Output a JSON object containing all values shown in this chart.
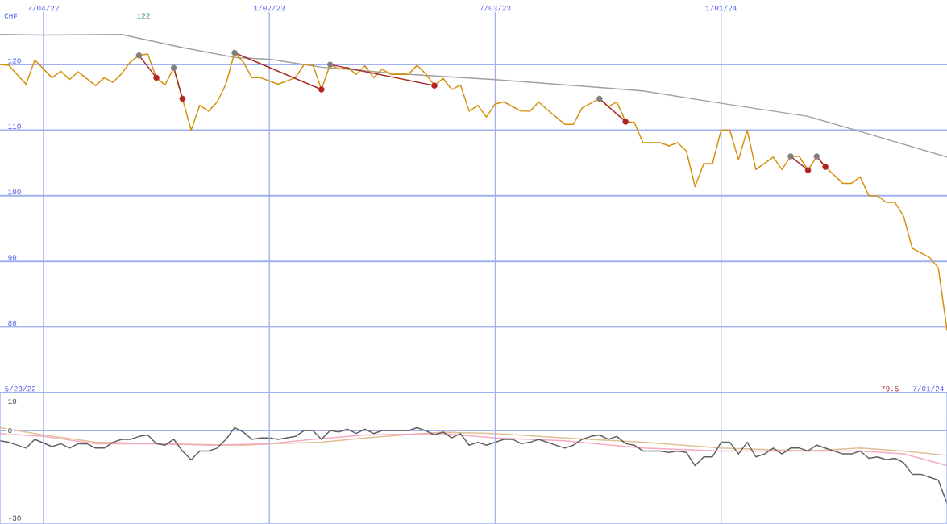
{
  "chart_data": [
    {
      "type": "line",
      "ylabel": "CHF",
      "annotations": [
        "122",
        "5/23/22",
        "79.5",
        "7/01/24"
      ],
      "xlim": [
        "2022-05-30",
        "2024-07-01"
      ],
      "ylim": [
        70,
        128
      ],
      "xticks": [
        {
          "value": "2022-07-04",
          "label": "7/04/22"
        },
        {
          "value": "2023-01-02",
          "label": "1/02/23"
        },
        {
          "value": "2023-07-03",
          "label": "7/03/23"
        },
        {
          "value": "2024-01-01",
          "label": "1/01/24"
        }
      ],
      "yticks": [
        80,
        90,
        100,
        110,
        120
      ],
      "grid": true,
      "tick_labels": "xy",
      "series": [
        {
          "color": "#a0a0a0",
          "x": [
            "2022-05-30",
            "2022-07-04",
            "2022-09-05",
            "2022-10-24",
            "2022-12-05",
            "2023-01-02",
            "2023-02-13",
            "2023-04-17",
            "2023-07-03",
            "2023-08-28",
            "2023-10-30",
            "2024-01-01",
            "2024-03-11",
            "2024-04-22",
            "2024-07-01"
          ],
          "values": [
            124.6,
            124.5,
            124.6,
            122.6,
            121.1,
            120.8,
            119.6,
            118.6,
            117.7,
            116.9,
            116.0,
            114.1,
            112.1,
            109.8,
            105.9
          ]
        },
        {
          "color": "#d4900a",
          "x": [
            "2022-05-30",
            "2022-06-06",
            "2022-06-20",
            "2022-06-27",
            "2022-07-11",
            "2022-07-18",
            "2022-07-25",
            "2022-08-01",
            "2022-08-15",
            "2022-08-22",
            "2022-08-29",
            "2022-09-05",
            "2022-09-12",
            "2022-09-19",
            "2022-09-26",
            "2022-10-03",
            "2022-10-10",
            "2022-10-17",
            "2022-10-24",
            "2022-10-31",
            "2022-11-07",
            "2022-11-14",
            "2022-11-21",
            "2022-11-28",
            "2022-12-05",
            "2022-12-12",
            "2022-12-19",
            "2022-12-26",
            "2023-01-09",
            "2023-01-23",
            "2023-01-30",
            "2023-02-06",
            "2023-02-13",
            "2023-02-20",
            "2023-02-27",
            "2023-03-06",
            "2023-03-13",
            "2023-03-20",
            "2023-03-27",
            "2023-04-03",
            "2023-04-10",
            "2023-04-24",
            "2023-05-01",
            "2023-05-08",
            "2023-05-15",
            "2023-05-22",
            "2023-05-29",
            "2023-06-05",
            "2023-06-12",
            "2023-06-19",
            "2023-06-26",
            "2023-07-03",
            "2023-07-10",
            "2023-07-24",
            "2023-07-31",
            "2023-08-07",
            "2023-08-14",
            "2023-08-28",
            "2023-09-04",
            "2023-09-11",
            "2023-09-25",
            "2023-10-02",
            "2023-10-09",
            "2023-10-16",
            "2023-10-23",
            "2023-10-30",
            "2023-11-13",
            "2023-11-20",
            "2023-11-27",
            "2023-12-04",
            "2023-12-11",
            "2023-12-18",
            "2023-12-25",
            "2024-01-01",
            "2024-01-08",
            "2024-01-15",
            "2024-01-22",
            "2024-01-29",
            "2024-02-12",
            "2024-02-19",
            "2024-02-26",
            "2024-03-04",
            "2024-03-11",
            "2024-03-18",
            "2024-03-25",
            "2024-04-08",
            "2024-04-15",
            "2024-04-22",
            "2024-04-29",
            "2024-05-06",
            "2024-05-13",
            "2024-05-20",
            "2024-05-27",
            "2024-06-03",
            "2024-06-10",
            "2024-06-17",
            "2024-06-24",
            "2024-07-01"
          ],
          "values": [
            120.0,
            119.9,
            117.0,
            120.7,
            118.0,
            119.0,
            117.7,
            118.9,
            116.8,
            118.0,
            117.3,
            118.6,
            120.4,
            121.4,
            121.6,
            118.0,
            116.9,
            119.5,
            114.8,
            110.0,
            113.8,
            112.9,
            114.3,
            117.0,
            121.8,
            120.4,
            118.0,
            118.0,
            117.0,
            118.0,
            120.0,
            120.0,
            116.2,
            120.0,
            119.3,
            119.6,
            118.5,
            119.8,
            118.0,
            119.3,
            118.5,
            118.5,
            119.9,
            118.6,
            116.8,
            117.9,
            116.2,
            116.9,
            112.9,
            113.8,
            112.0,
            114.0,
            114.3,
            112.9,
            112.9,
            114.3,
            113.1,
            110.9,
            110.9,
            113.4,
            114.8,
            113.6,
            114.3,
            111.3,
            111.2,
            108.1,
            108.1,
            107.6,
            108.1,
            106.8,
            101.4,
            104.9,
            104.9,
            110.0,
            110.0,
            105.5,
            110.0,
            104.0,
            105.9,
            104.0,
            106.0,
            106.0,
            103.9,
            106.0,
            104.4,
            101.9,
            101.9,
            102.9,
            100.0,
            100.0,
            99.0,
            99.0,
            96.9,
            92.0,
            91.3,
            90.6,
            89.0,
            79.5
          ]
        },
        {
          "color": "#a52a2a",
          "marker": "circle",
          "colors": [
            "#808080",
            "#b22222"
          ],
          "x": [
            "2022-09-19",
            "2022-10-03"
          ],
          "values": [
            121.4,
            118.0
          ]
        },
        {
          "color": "#a52a2a",
          "marker": "circle",
          "colors": [
            "#808080",
            "#b22222"
          ],
          "x": [
            "2022-10-17",
            "2022-10-24"
          ],
          "values": [
            119.5,
            114.8
          ]
        },
        {
          "color": "#a52a2a",
          "marker": "circle",
          "colors": [
            "#808080",
            "#b22222"
          ],
          "x": [
            "2022-12-05",
            "2023-02-13"
          ],
          "values": [
            121.8,
            116.2
          ]
        },
        {
          "color": "#a52a2a",
          "marker": "circle",
          "colors": [
            "#808080",
            "#b22222"
          ],
          "x": [
            "2023-02-20",
            "2023-05-15"
          ],
          "values": [
            120.0,
            116.8
          ]
        },
        {
          "color": "#a52a2a",
          "marker": "circle",
          "colors": [
            "#808080",
            "#b22222"
          ],
          "x": [
            "2023-09-25",
            "2023-10-16"
          ],
          "values": [
            114.8,
            111.3
          ]
        },
        {
          "color": "#a52a2a",
          "marker": "circle",
          "colors": [
            "#808080",
            "#b22222"
          ],
          "x": [
            "2024-02-26",
            "2024-03-11"
          ],
          "values": [
            106.0,
            103.9
          ]
        },
        {
          "color": "#a52a2a",
          "marker": "circle",
          "colors": [
            "#808080",
            "#b22222"
          ],
          "x": [
            "2024-03-18",
            "2024-03-25"
          ],
          "values": [
            106.0,
            104.4
          ]
        }
      ]
    },
    {
      "type": "line",
      "xlim": [
        "2022-05-30",
        "2024-07-01"
      ],
      "ylim": [
        -32,
        13
      ],
      "xticks": [
        {
          "value": "2022-07-04",
          "label": null
        },
        {
          "value": "2023-01-02",
          "label": null
        },
        {
          "value": "2023-07-03",
          "label": null
        },
        {
          "value": "2024-01-01",
          "label": null
        }
      ],
      "yticks": [
        10,
        0,
        -30
      ],
      "grid": "x",
      "tick_labels": "y",
      "ref_lines": [
        {
          "axis": "y",
          "value": 0,
          "color": "#a0b0f0"
        }
      ],
      "series": [
        {
          "color": "#e0c090",
          "x": [
            "2022-05-30",
            "2022-07-04",
            "2022-08-15",
            "2022-10-03",
            "2022-12-12",
            "2023-01-02",
            "2023-02-13",
            "2023-03-20",
            "2023-05-22",
            "2023-07-03",
            "2023-08-28",
            "2023-10-30",
            "2024-01-01",
            "2024-03-11",
            "2024-04-22",
            "2024-05-27",
            "2024-07-01"
          ],
          "values": [
            1,
            -1.5,
            -4,
            -4.5,
            -5,
            -4.5,
            -4,
            -2.5,
            -0.5,
            -1,
            -2.5,
            -4,
            -6,
            -7,
            -6,
            -7,
            -8.5
          ]
        },
        {
          "color": "#f8a8c0",
          "x": [
            "2022-05-30",
            "2022-07-04",
            "2022-08-15",
            "2022-10-03",
            "2022-11-14",
            "2023-01-02",
            "2023-02-06",
            "2023-03-20",
            "2023-05-22",
            "2023-07-03",
            "2023-08-28",
            "2023-10-30",
            "2024-01-01",
            "2024-03-11",
            "2024-04-22",
            "2024-05-27",
            "2024-07-01"
          ],
          "values": [
            -1,
            -2,
            -4.5,
            -4.5,
            -5,
            -4.5,
            -3,
            -1.5,
            -1,
            -2.5,
            -3.5,
            -6,
            -7,
            -7,
            -7,
            -8,
            -12
          ]
        },
        {
          "color": "#606060",
          "x": [
            "2022-05-30",
            "2022-06-06",
            "2022-06-20",
            "2022-06-27",
            "2022-07-11",
            "2022-07-18",
            "2022-07-25",
            "2022-08-01",
            "2022-08-08",
            "2022-08-15",
            "2022-08-22",
            "2022-08-29",
            "2022-09-05",
            "2022-09-12",
            "2022-09-19",
            "2022-09-26",
            "2022-10-03",
            "2022-10-10",
            "2022-10-17",
            "2022-10-24",
            "2022-10-31",
            "2022-11-07",
            "2022-11-14",
            "2022-11-21",
            "2022-11-28",
            "2022-12-05",
            "2022-12-12",
            "2022-12-19",
            "2022-12-26",
            "2023-01-02",
            "2023-01-09",
            "2023-01-23",
            "2023-01-30",
            "2023-02-06",
            "2023-02-13",
            "2023-02-20",
            "2023-02-27",
            "2023-03-06",
            "2023-03-13",
            "2023-03-20",
            "2023-03-27",
            "2023-04-03",
            "2023-04-10",
            "2023-04-24",
            "2023-05-01",
            "2023-05-08",
            "2023-05-15",
            "2023-05-22",
            "2023-05-29",
            "2023-06-05",
            "2023-06-12",
            "2023-06-19",
            "2023-06-26",
            "2023-07-03",
            "2023-07-10",
            "2023-07-17",
            "2023-07-24",
            "2023-07-31",
            "2023-08-07",
            "2023-08-14",
            "2023-08-28",
            "2023-09-04",
            "2023-09-11",
            "2023-09-18",
            "2023-09-25",
            "2023-10-02",
            "2023-10-09",
            "2023-10-16",
            "2023-10-23",
            "2023-10-30",
            "2023-11-13",
            "2023-11-20",
            "2023-11-27",
            "2023-12-04",
            "2023-12-11",
            "2023-12-18",
            "2023-12-25",
            "2024-01-01",
            "2024-01-08",
            "2024-01-15",
            "2024-01-22",
            "2024-01-29",
            "2024-02-05",
            "2024-02-12",
            "2024-02-19",
            "2024-02-26",
            "2024-03-04",
            "2024-03-11",
            "2024-03-18",
            "2024-03-25",
            "2024-04-01",
            "2024-04-08",
            "2024-04-15",
            "2024-04-22",
            "2024-04-29",
            "2024-05-06",
            "2024-05-13",
            "2024-05-20",
            "2024-05-27",
            "2024-06-03",
            "2024-06-10",
            "2024-06-17",
            "2024-06-24",
            "2024-07-01"
          ],
          "values": [
            -3.5,
            -4,
            -6,
            -3,
            -5.5,
            -4.5,
            -6,
            -4.5,
            -4.5,
            -6,
            -6,
            -4,
            -3,
            -3,
            -2,
            -1.5,
            -4.5,
            -5,
            -3,
            -7,
            -10,
            -7,
            -7,
            -6,
            -3,
            1,
            -0.5,
            -3,
            -2.5,
            -2.5,
            -3,
            -2,
            0,
            0,
            -3,
            0,
            -0.5,
            0.5,
            -1,
            0.5,
            -1,
            0,
            0,
            0,
            1,
            0,
            -1.5,
            -0.5,
            -2.5,
            -1,
            -5,
            -4,
            -5,
            -4,
            -3,
            -3,
            -4.5,
            -4,
            -3,
            -4,
            -6,
            -5,
            -3,
            -2,
            -1.5,
            -3,
            -2,
            -4.5,
            -5,
            -7,
            -7,
            -7.5,
            -7,
            -7.5,
            -12,
            -9,
            -9,
            -4,
            -4,
            -8,
            -4,
            -9,
            -8,
            -6,
            -8,
            -6,
            -6,
            -7,
            -5,
            -6,
            -7,
            -8,
            -8,
            -7,
            -9.5,
            -9,
            -10,
            -9.5,
            -11,
            -15,
            -15,
            -16,
            -17,
            -25
          ]
        }
      ]
    }
  ]
}
